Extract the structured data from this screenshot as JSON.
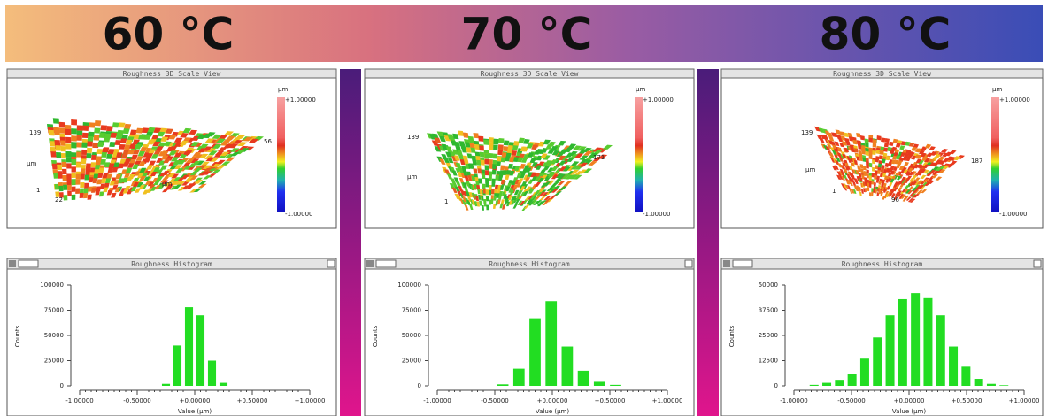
{
  "banner": {
    "labels": [
      "60 °C",
      "70 °C",
      "80 °C"
    ]
  },
  "surface_panels": [
    {
      "title": "Roughness 3D Scale View",
      "unit": "µm",
      "scale_max": "+1.00000",
      "scale_min": "-1.00000",
      "axis_labels": [
        "139",
        "µm",
        "1",
        "22",
        "µm",
        "56"
      ]
    },
    {
      "title": "Roughness 3D Scale View",
      "unit": "µm",
      "scale_max": "+1.00000",
      "scale_min": "-1.00000",
      "axis_labels": [
        "139",
        "µm",
        "1",
        "171"
      ]
    },
    {
      "title": "Roughness 3D Scale View",
      "unit": "µm",
      "scale_max": "+1.00000",
      "scale_min": "-1.00000",
      "axis_labels": [
        "139",
        "µm",
        "1",
        "187",
        "96"
      ]
    }
  ],
  "chart_data": [
    {
      "type": "histogram",
      "title": "Roughness Histogram",
      "x_label": "Value (µm)",
      "y_label": "Counts",
      "color": "#22dd22",
      "bins": [
        -0.3,
        -0.2,
        -0.1,
        0,
        0.1,
        0.2,
        0.3
      ],
      "values": [
        2000,
        40000,
        78000,
        70000,
        25000,
        3000
      ],
      "xlim": [
        -1,
        1
      ],
      "xticks": [
        {
          "value": -1,
          "label": "-1.00000"
        },
        {
          "value": -0.5,
          "label": "-0.50000"
        },
        {
          "value": 0,
          "label": "+0.00000"
        },
        {
          "value": 0.5,
          "label": "+0.50000"
        },
        {
          "value": 1,
          "label": "+1.00000"
        }
      ],
      "ylim": [
        0,
        100000
      ],
      "yticks": [
        0,
        25000,
        50000,
        75000,
        100000
      ]
    },
    {
      "type": "histogram",
      "title": "Roughness Histogram",
      "x_label": "Value (µm)",
      "y_label": "Counts",
      "color": "#22dd22",
      "bins": [
        -0.5,
        -0.36,
        -0.22,
        -0.08,
        0.06,
        0.2,
        0.34,
        0.48,
        0.62
      ],
      "values": [
        1500,
        17000,
        67000,
        84000,
        39000,
        15000,
        4000,
        1000
      ],
      "xlim": [
        -1,
        1
      ],
      "xticks": [
        {
          "value": -1,
          "label": "-1.00000"
        },
        {
          "value": -0.5,
          "label": "-0.50000"
        },
        {
          "value": 0,
          "label": "+0.00000"
        },
        {
          "value": 0.5,
          "label": "+0.50000"
        },
        {
          "value": 1,
          "label": "+1.00000"
        }
      ],
      "ylim": [
        0,
        100000
      ],
      "yticks": [
        0,
        25000,
        50000,
        75000,
        100000
      ]
    },
    {
      "type": "histogram",
      "title": "Roughness Histogram",
      "x_label": "Value (µm)",
      "y_label": "Counts",
      "color": "#22dd22",
      "bins": [
        -0.88,
        -0.77,
        -0.66,
        -0.55,
        -0.44,
        -0.33,
        -0.22,
        -0.11,
        0,
        0.11,
        0.22,
        0.33,
        0.44,
        0.55,
        0.66,
        0.77,
        0.88
      ],
      "values": [
        500,
        1500,
        3000,
        6000,
        13500,
        24000,
        35000,
        43000,
        46000,
        43500,
        35000,
        19500,
        9500,
        3500,
        1000,
        300
      ],
      "xlim": [
        -1,
        1
      ],
      "xticks": [
        {
          "value": -1,
          "label": "-1.00000"
        },
        {
          "value": -0.5,
          "label": "-0.50000"
        },
        {
          "value": 0,
          "label": "+0.00000"
        },
        {
          "value": 0.5,
          "label": "+0.50000"
        },
        {
          "value": 1,
          "label": "+1.00000"
        }
      ],
      "ylim": [
        0,
        50000
      ],
      "yticks": [
        0,
        12500,
        25000,
        37500,
        50000
      ]
    }
  ]
}
